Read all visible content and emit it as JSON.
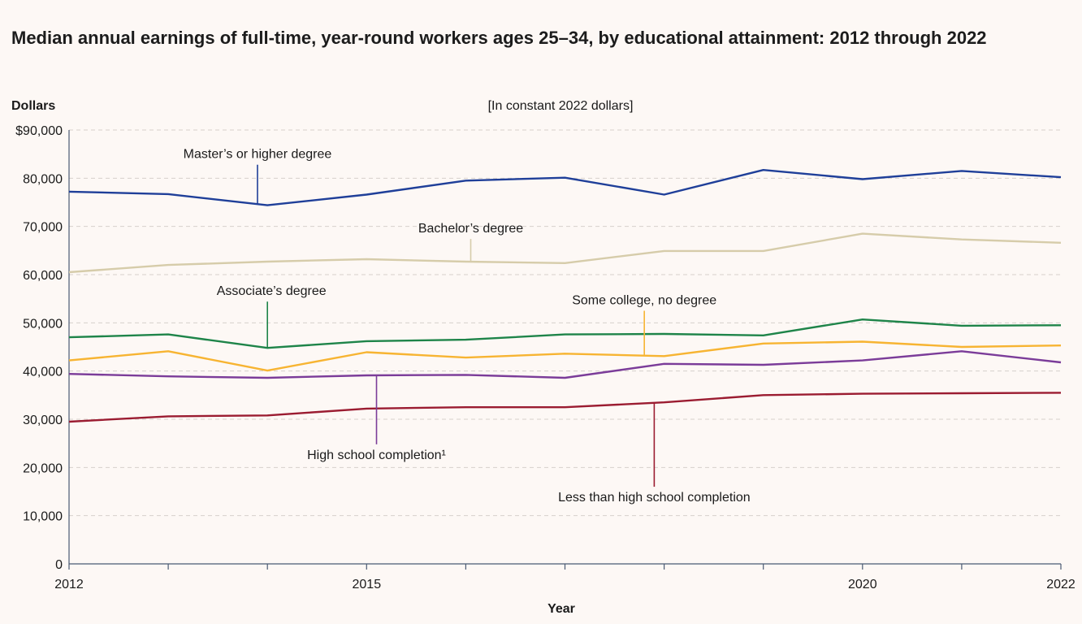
{
  "chart_data": {
    "type": "line",
    "title": "Median annual earnings of full-time, year-round workers ages 25–34, by educational attainment: 2012 through 2022",
    "subtitle": "[In constant 2022 dollars]",
    "xlabel": "Year",
    "ylabel": "Dollars",
    "x": [
      2012,
      2013,
      2014,
      2015,
      2016,
      2017,
      2018,
      2019,
      2020,
      2021,
      2022
    ],
    "x_tick_labels": [
      {
        "x": 2012,
        "label": "2012"
      },
      {
        "x": 2015,
        "label": "2015"
      },
      {
        "x": 2020,
        "label": "2020"
      },
      {
        "x": 2022,
        "label": "2022"
      }
    ],
    "y_tick_labels": [
      {
        "y": 0,
        "label": "0"
      },
      {
        "y": 10000,
        "label": "10,000"
      },
      {
        "y": 20000,
        "label": "20,000"
      },
      {
        "y": 30000,
        "label": "30,000"
      },
      {
        "y": 40000,
        "label": "40,000"
      },
      {
        "y": 50000,
        "label": "50,000"
      },
      {
        "y": 60000,
        "label": "60,000"
      },
      {
        "y": 70000,
        "label": "70,000"
      },
      {
        "y": 80000,
        "label": "80,000"
      },
      {
        "y": 90000,
        "label": "$90,000"
      }
    ],
    "xlim": [
      2012,
      2022
    ],
    "ylim": [
      0,
      90000
    ],
    "grid": "horizontal dashed",
    "legend": "direct labels with leader lines",
    "series": [
      {
        "name": "Master’s or higher degree",
        "color": "#1f3f99",
        "values": [
          77200,
          76700,
          74400,
          76600,
          79500,
          80100,
          76600,
          81700,
          79800,
          81500,
          80200
        ],
        "label_anchor_x": 2013.9,
        "label_anchor_y": 74600,
        "label_y": 82800
      },
      {
        "name": "Bachelor’s degree",
        "color": "#d6ccaa",
        "values": [
          60500,
          62000,
          62700,
          63200,
          62700,
          62400,
          64900,
          64900,
          68500,
          67300,
          66600
        ],
        "label_anchor_x": 2016.05,
        "label_anchor_y": 62700,
        "label_y": 67400
      },
      {
        "name": "Associate’s degree",
        "color": "#1e8449",
        "values": [
          47000,
          47600,
          44800,
          46200,
          46500,
          47600,
          47700,
          47400,
          50700,
          49400,
          49500
        ],
        "label_anchor_x": 2014,
        "label_anchor_y": 44900,
        "label_y": 54400
      },
      {
        "name": "Some college, no degree",
        "color": "#f7b432",
        "values": [
          42200,
          44100,
          40100,
          43900,
          42800,
          43600,
          43100,
          45700,
          46100,
          45000,
          45300
        ],
        "label_anchor_x": 2017.8,
        "label_anchor_y": 43400,
        "label_y": 52500
      },
      {
        "name": "High school completion¹",
        "color": "#7b3c99",
        "values": [
          39400,
          38900,
          38600,
          39100,
          39200,
          38600,
          41500,
          41300,
          42200,
          44100,
          41800
        ],
        "label_anchor_x": 2015.1,
        "label_anchor_y": 39100,
        "label_y": 24800
      },
      {
        "name": "Less than high school completion",
        "color": "#9b1c31",
        "values": [
          29500,
          30600,
          30800,
          32200,
          32500,
          32500,
          33500,
          35000,
          35300,
          35400,
          35500
        ],
        "label_anchor_x": 2017.9,
        "label_anchor_y": 33400,
        "label_y": 16000
      }
    ]
  }
}
